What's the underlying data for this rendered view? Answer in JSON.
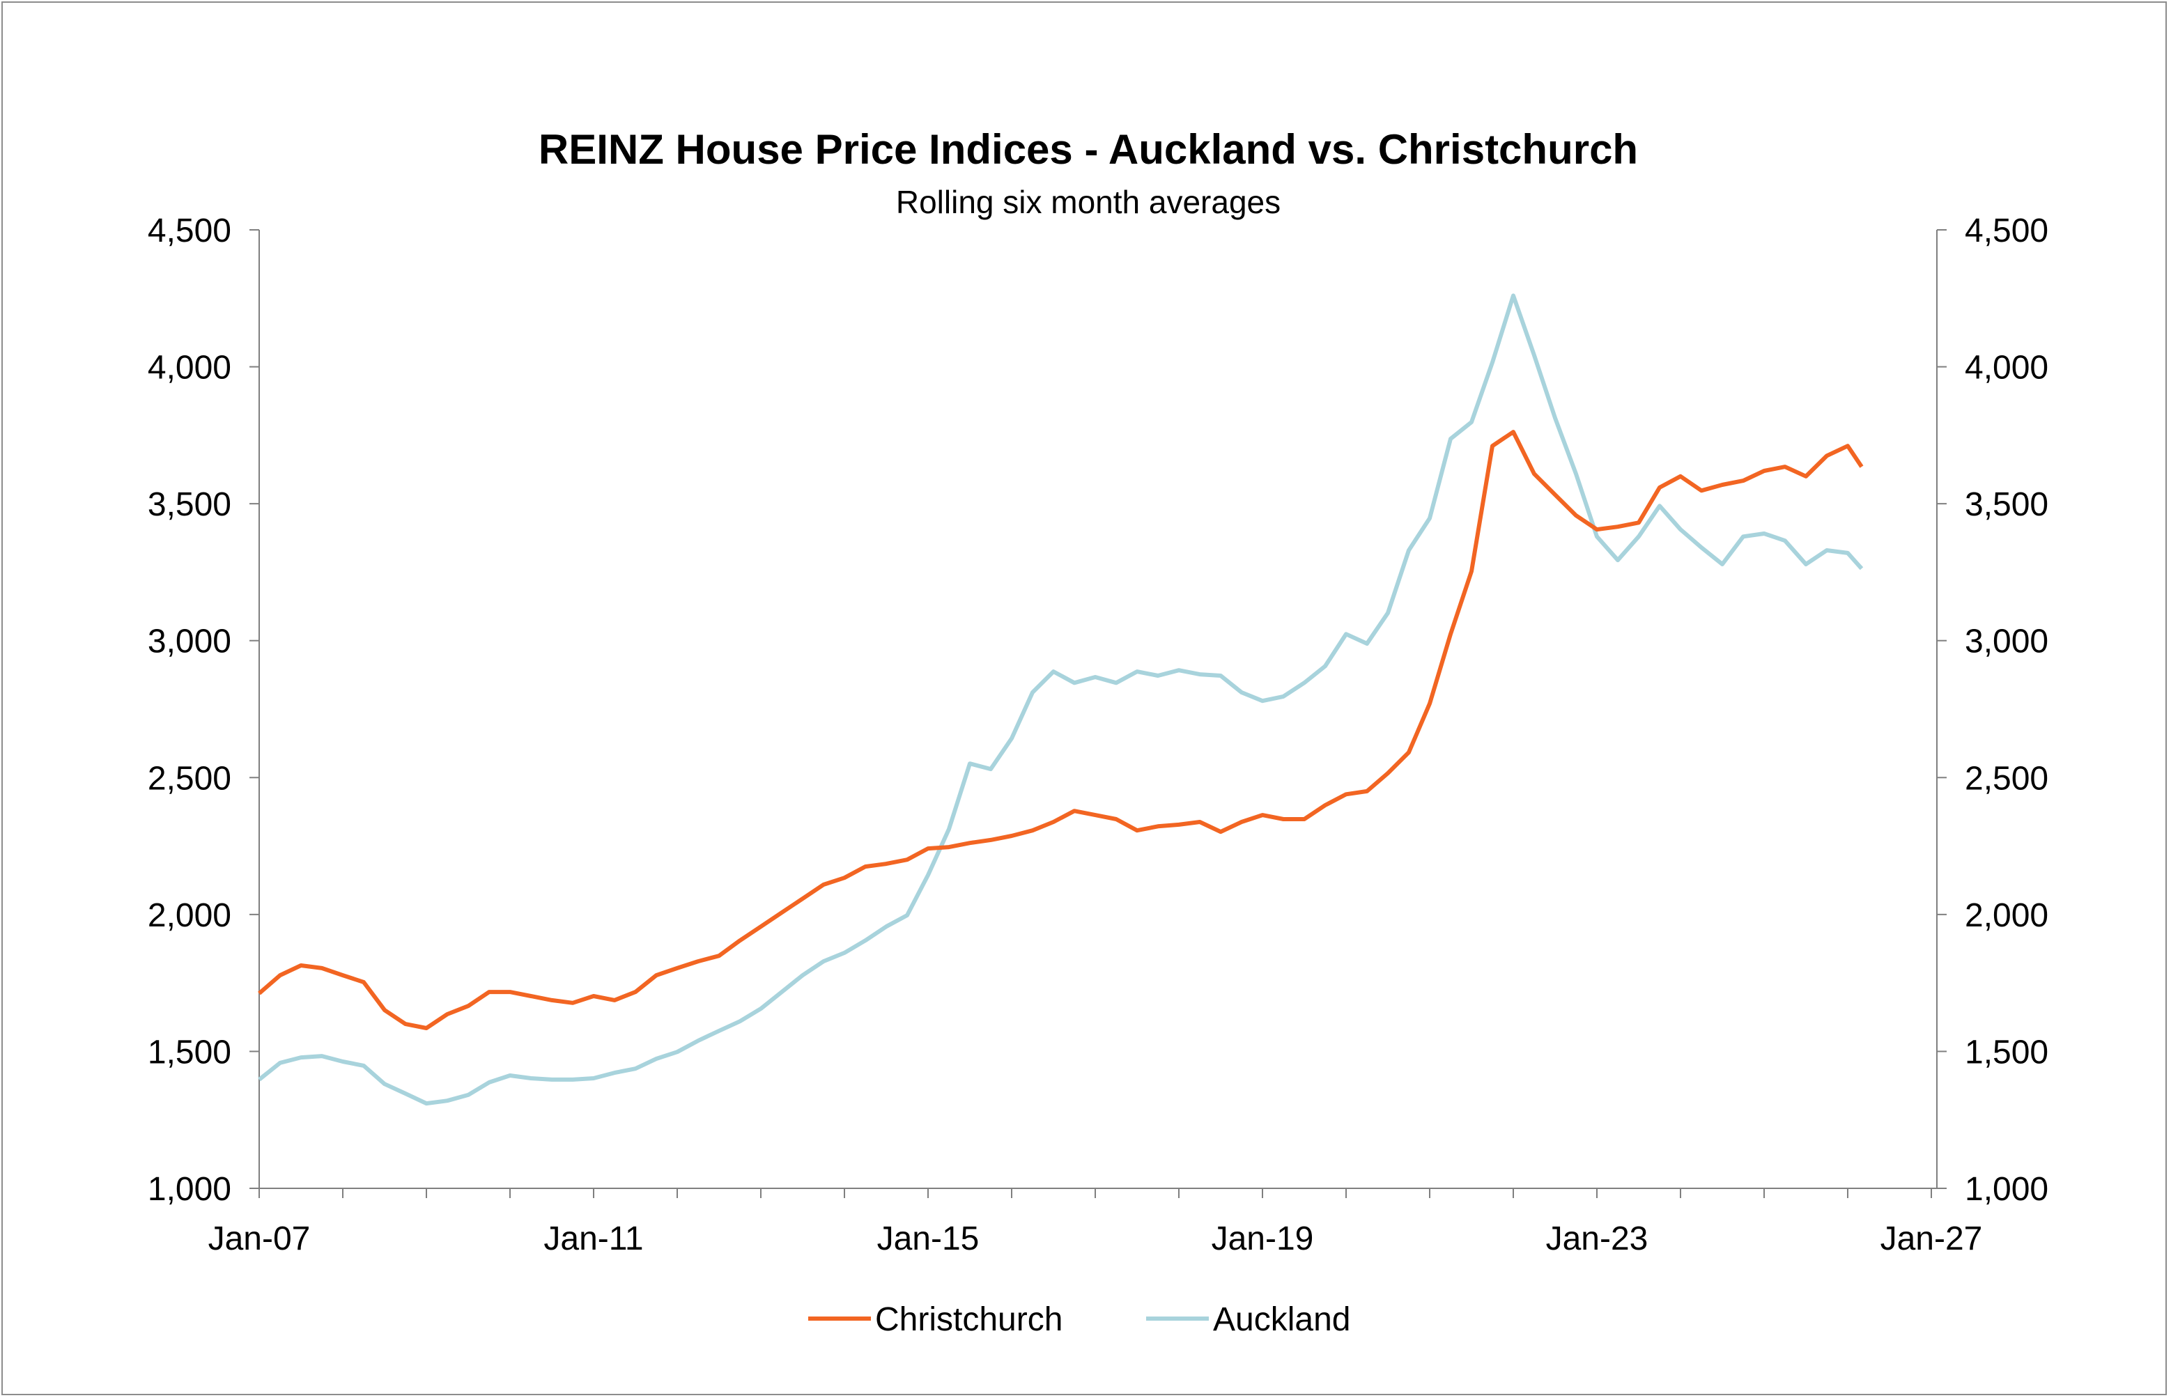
{
  "chart_data": {
    "type": "line",
    "title": "REINZ House Price Indices - Auckland vs. Christchurch",
    "subtitle": "Rolling six month averages",
    "xlabel": "",
    "ylabel": "",
    "ylim": [
      1000,
      4500
    ],
    "yticks": [
      "1,000",
      "1,500",
      "2,000",
      "2,500",
      "3,000",
      "3,500",
      "4,000",
      "4,500"
    ],
    "ytick_values": [
      1000,
      1500,
      2000,
      2500,
      3000,
      3500,
      4000,
      4500
    ],
    "xticks": [
      "Jan-07",
      "Jan-11",
      "Jan-15",
      "Jan-19",
      "Jan-23",
      "Jan-27"
    ],
    "xtick_dates": [
      "2007-01",
      "2011-01",
      "2015-01",
      "2019-01",
      "2023-01",
      "2027-01"
    ],
    "xlim": [
      "2007-01",
      "2027-01"
    ],
    "secondary_y_axis": true,
    "grid": false,
    "legend": "bottom",
    "x": [
      "2007-01",
      "2007-04",
      "2007-07",
      "2007-10",
      "2008-01",
      "2008-04",
      "2008-07",
      "2008-10",
      "2009-01",
      "2009-04",
      "2009-07",
      "2009-10",
      "2010-01",
      "2010-04",
      "2010-07",
      "2010-10",
      "2011-01",
      "2011-04",
      "2011-07",
      "2011-10",
      "2012-01",
      "2012-04",
      "2012-07",
      "2012-10",
      "2013-01",
      "2013-04",
      "2013-07",
      "2013-10",
      "2014-01",
      "2014-04",
      "2014-07",
      "2014-10",
      "2015-01",
      "2015-04",
      "2015-07",
      "2015-10",
      "2016-01",
      "2016-04",
      "2016-07",
      "2016-10",
      "2017-01",
      "2017-04",
      "2017-07",
      "2017-10",
      "2018-01",
      "2018-04",
      "2018-07",
      "2018-10",
      "2019-01",
      "2019-04",
      "2019-07",
      "2019-10",
      "2020-01",
      "2020-04",
      "2020-07",
      "2020-10",
      "2021-01",
      "2021-04",
      "2021-07",
      "2021-10",
      "2022-01",
      "2022-04",
      "2022-07",
      "2022-10",
      "2023-01",
      "2023-04",
      "2023-07",
      "2023-10",
      "2024-01",
      "2024-04",
      "2024-07",
      "2024-10",
      "2025-01",
      "2025-04",
      "2025-07",
      "2025-10",
      "2026-01",
      "2026-03"
    ],
    "series": [
      {
        "name": "Christchurch",
        "color": "#f26522",
        "values": [
          1712,
          1778,
          1814,
          1804,
          1778,
          1753,
          1651,
          1600,
          1585,
          1636,
          1666,
          1717,
          1717,
          1702,
          1687,
          1677,
          1702,
          1687,
          1717,
          1778,
          1804,
          1829,
          1849,
          1905,
          1956,
          2007,
          2058,
          2109,
          2134,
          2175,
          2185,
          2200,
          2241,
          2246,
          2261,
          2272,
          2287,
          2307,
          2338,
          2378,
          2363,
          2348,
          2307,
          2322,
          2328,
          2338,
          2302,
          2338,
          2363,
          2348,
          2348,
          2399,
          2439,
          2450,
          2516,
          2592,
          2770,
          3024,
          3253,
          3711,
          3762,
          3609,
          3533,
          3457,
          3406,
          3416,
          3431,
          3559,
          3600,
          3548,
          3569,
          3584,
          3620,
          3635,
          3600,
          3675,
          3711,
          3635
        ]
      },
      {
        "name": "Auckland",
        "color": "#a8d3dc",
        "values": [
          1397,
          1458,
          1478,
          1483,
          1463,
          1448,
          1381,
          1346,
          1310,
          1320,
          1341,
          1387,
          1412,
          1402,
          1397,
          1397,
          1402,
          1422,
          1437,
          1473,
          1498,
          1539,
          1575,
          1610,
          1656,
          1717,
          1778,
          1829,
          1860,
          1905,
          1956,
          1997,
          2144,
          2312,
          2551,
          2531,
          2643,
          2811,
          2887,
          2846,
          2867,
          2846,
          2887,
          2872,
          2892,
          2877,
          2872,
          2811,
          2780,
          2796,
          2846,
          2907,
          3024,
          2989,
          3101,
          3330,
          3447,
          3737,
          3798,
          4016,
          4260,
          4042,
          3813,
          3609,
          3380,
          3294,
          3380,
          3492,
          3406,
          3340,
          3279,
          3380,
          3391,
          3365,
          3279,
          3330,
          3320,
          3263
        ]
      }
    ]
  }
}
